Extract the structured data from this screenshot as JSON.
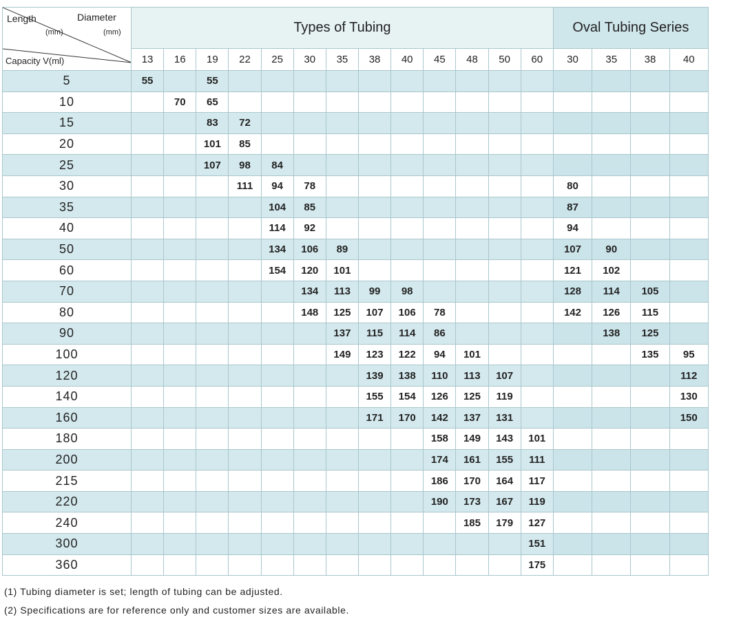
{
  "corner": {
    "length": "Length",
    "length_unit": "(mm)",
    "diameter": "Diameter",
    "diameter_unit": "(mm)",
    "capacity": "Capacity V(ml)"
  },
  "groups": {
    "tubing": "Types of Tubing",
    "oval": "Oval Tubing Series"
  },
  "columns": {
    "tubing": [
      13,
      16,
      19,
      22,
      25,
      30,
      35,
      38,
      40,
      45,
      48,
      50,
      60
    ],
    "oval": [
      30,
      35,
      38,
      40
    ]
  },
  "rows": [
    {
      "capacity": 5,
      "cells": [
        55,
        null,
        55,
        null,
        null,
        null,
        null,
        null,
        null,
        null,
        null,
        null,
        null,
        null,
        null,
        null,
        null
      ]
    },
    {
      "capacity": 10,
      "cells": [
        null,
        70,
        65,
        null,
        null,
        null,
        null,
        null,
        null,
        null,
        null,
        null,
        null,
        null,
        null,
        null,
        null
      ]
    },
    {
      "capacity": 15,
      "cells": [
        null,
        null,
        83,
        72,
        null,
        null,
        null,
        null,
        null,
        null,
        null,
        null,
        null,
        null,
        null,
        null,
        null
      ]
    },
    {
      "capacity": 20,
      "cells": [
        null,
        null,
        101,
        85,
        null,
        null,
        null,
        null,
        null,
        null,
        null,
        null,
        null,
        null,
        null,
        null,
        null
      ]
    },
    {
      "capacity": 25,
      "cells": [
        null,
        null,
        107,
        98,
        84,
        null,
        null,
        null,
        null,
        null,
        null,
        null,
        null,
        null,
        null,
        null,
        null
      ]
    },
    {
      "capacity": 30,
      "cells": [
        null,
        null,
        null,
        111,
        94,
        78,
        null,
        null,
        null,
        null,
        null,
        null,
        null,
        80,
        null,
        null,
        null
      ]
    },
    {
      "capacity": 35,
      "cells": [
        null,
        null,
        null,
        null,
        104,
        85,
        null,
        null,
        null,
        null,
        null,
        null,
        null,
        87,
        null,
        null,
        null
      ]
    },
    {
      "capacity": 40,
      "cells": [
        null,
        null,
        null,
        null,
        114,
        92,
        null,
        null,
        null,
        null,
        null,
        null,
        null,
        94,
        null,
        null,
        null
      ]
    },
    {
      "capacity": 50,
      "cells": [
        null,
        null,
        null,
        null,
        134,
        106,
        89,
        null,
        null,
        null,
        null,
        null,
        null,
        107,
        90,
        null,
        null
      ]
    },
    {
      "capacity": 60,
      "cells": [
        null,
        null,
        null,
        null,
        154,
        120,
        101,
        null,
        null,
        null,
        null,
        null,
        null,
        121,
        102,
        null,
        null
      ]
    },
    {
      "capacity": 70,
      "cells": [
        null,
        null,
        null,
        null,
        null,
        134,
        113,
        99,
        98,
        null,
        null,
        null,
        null,
        128,
        114,
        105,
        null
      ]
    },
    {
      "capacity": 80,
      "cells": [
        null,
        null,
        null,
        null,
        null,
        148,
        125,
        107,
        106,
        78,
        null,
        null,
        null,
        142,
        126,
        115,
        null
      ]
    },
    {
      "capacity": 90,
      "cells": [
        null,
        null,
        null,
        null,
        null,
        null,
        137,
        115,
        114,
        86,
        null,
        null,
        null,
        null,
        138,
        125,
        null
      ]
    },
    {
      "capacity": 100,
      "cells": [
        null,
        null,
        null,
        null,
        null,
        null,
        149,
        123,
        122,
        94,
        101,
        null,
        null,
        null,
        null,
        135,
        95
      ]
    },
    {
      "capacity": 120,
      "cells": [
        null,
        null,
        null,
        null,
        null,
        null,
        null,
        139,
        138,
        110,
        113,
        107,
        null,
        null,
        null,
        null,
        112
      ]
    },
    {
      "capacity": 140,
      "cells": [
        null,
        null,
        null,
        null,
        null,
        null,
        null,
        155,
        154,
        126,
        125,
        119,
        null,
        null,
        null,
        null,
        130
      ]
    },
    {
      "capacity": 160,
      "cells": [
        null,
        null,
        null,
        null,
        null,
        null,
        null,
        171,
        170,
        142,
        137,
        131,
        null,
        null,
        null,
        null,
        150
      ]
    },
    {
      "capacity": 180,
      "cells": [
        null,
        null,
        null,
        null,
        null,
        null,
        null,
        null,
        null,
        158,
        149,
        143,
        101,
        null,
        null,
        null,
        null
      ]
    },
    {
      "capacity": 200,
      "cells": [
        null,
        null,
        null,
        null,
        null,
        null,
        null,
        null,
        null,
        174,
        161,
        155,
        111,
        null,
        null,
        null,
        null
      ]
    },
    {
      "capacity": 215,
      "cells": [
        null,
        null,
        null,
        null,
        null,
        null,
        null,
        null,
        null,
        186,
        170,
        164,
        117,
        null,
        null,
        null,
        null
      ]
    },
    {
      "capacity": 220,
      "cells": [
        null,
        null,
        null,
        null,
        null,
        null,
        null,
        null,
        null,
        190,
        173,
        167,
        119,
        null,
        null,
        null,
        null
      ]
    },
    {
      "capacity": 240,
      "cells": [
        null,
        null,
        null,
        null,
        null,
        null,
        null,
        null,
        null,
        null,
        185,
        179,
        127,
        null,
        null,
        null,
        null
      ]
    },
    {
      "capacity": 300,
      "cells": [
        null,
        null,
        null,
        null,
        null,
        null,
        null,
        null,
        null,
        null,
        null,
        null,
        151,
        null,
        null,
        null,
        null
      ]
    },
    {
      "capacity": 360,
      "cells": [
        null,
        null,
        null,
        null,
        null,
        null,
        null,
        null,
        null,
        null,
        null,
        null,
        175,
        null,
        null,
        null,
        null
      ]
    }
  ],
  "notes": [
    "(1) Tubing diameter is set; length of tubing can be adjusted.",
    "(2) Specifications are for reference only and customer sizes are available."
  ]
}
